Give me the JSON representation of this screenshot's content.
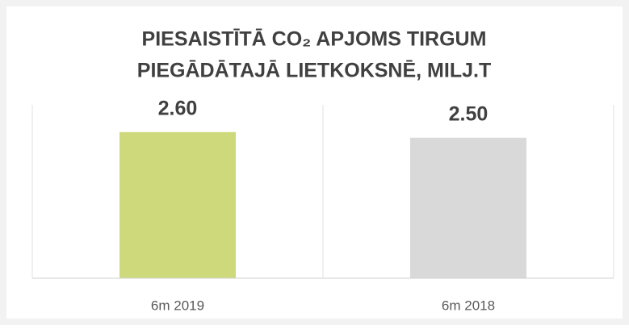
{
  "chart_data": {
    "type": "bar",
    "title": [
      "PIESAISTĪTĀ CO₂ APJOMS TIRGUM",
      "PIEGĀDĀTAJĀ LIETKOKSNĒ, MILJ.T"
    ],
    "categories": [
      "6m 2019",
      "6m 2018"
    ],
    "values": [
      2.6,
      2.5
    ],
    "value_labels": [
      "2.60",
      "2.50"
    ],
    "colors": [
      "#cdd97a",
      "#d9d9d9"
    ],
    "ylim": [
      0,
      3.2
    ]
  }
}
